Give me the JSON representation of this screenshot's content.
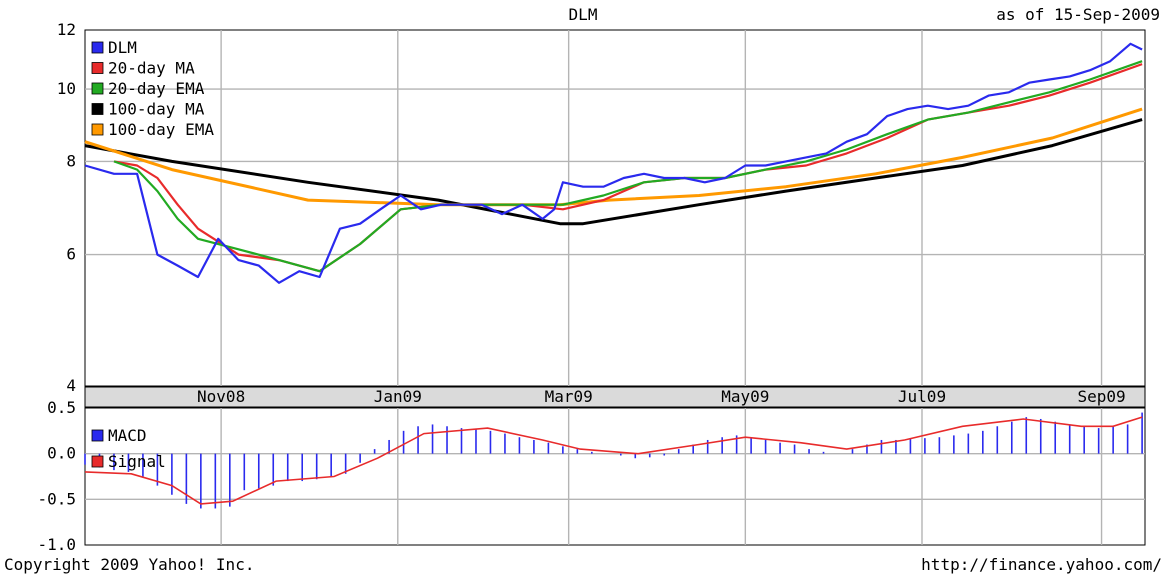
{
  "chart_data": [
    {
      "type": "line",
      "title": "DLM",
      "subtitle": "as of 15-Sep-2009",
      "y_scale": "log",
      "ylim": [
        4,
        12
      ],
      "yticks": [
        "4",
        "6",
        "8",
        "10",
        "12"
      ],
      "xticks": [
        "Nov08",
        "Jan09",
        "Mar09",
        "May09",
        "Jul09",
        "Sep09"
      ],
      "grid": true,
      "legend": "top-left",
      "series": [
        {
          "name": "DLM",
          "color": "#2a2aee",
          "x": [
            "2008-09-15",
            "2008-09-25",
            "2008-10-03",
            "2008-10-10",
            "2008-10-17",
            "2008-10-24",
            "2008-10-31",
            "2008-11-07",
            "2008-11-14",
            "2008-11-21",
            "2008-11-28",
            "2008-12-05",
            "2008-12-12",
            "2008-12-19",
            "2008-12-26",
            "2009-01-02",
            "2009-01-09",
            "2009-01-16",
            "2009-01-23",
            "2009-01-30",
            "2009-02-06",
            "2009-02-13",
            "2009-02-20",
            "2009-02-24",
            "2009-02-27",
            "2009-03-06",
            "2009-03-13",
            "2009-03-20",
            "2009-03-27",
            "2009-04-03",
            "2009-04-10",
            "2009-04-17",
            "2009-04-24",
            "2009-05-01",
            "2009-05-08",
            "2009-05-15",
            "2009-05-22",
            "2009-05-29",
            "2009-06-05",
            "2009-06-12",
            "2009-06-19",
            "2009-06-26",
            "2009-07-03",
            "2009-07-10",
            "2009-07-17",
            "2009-07-24",
            "2009-07-31",
            "2009-08-07",
            "2009-08-14",
            "2009-08-21",
            "2009-08-28",
            "2009-09-04",
            "2009-09-11",
            "2009-09-15"
          ],
          "values": [
            7.9,
            7.7,
            7.7,
            6.0,
            5.8,
            5.6,
            6.3,
            5.9,
            5.8,
            5.5,
            5.7,
            5.6,
            6.5,
            6.6,
            6.9,
            7.2,
            6.9,
            7.0,
            7.0,
            7.0,
            6.8,
            7.0,
            6.7,
            6.9,
            7.5,
            7.4,
            7.4,
            7.6,
            7.7,
            7.6,
            7.6,
            7.5,
            7.6,
            7.9,
            7.9,
            8.0,
            8.1,
            8.2,
            8.5,
            8.7,
            9.2,
            9.4,
            9.5,
            9.4,
            9.5,
            9.8,
            9.9,
            10.2,
            10.3,
            10.4,
            10.6,
            10.9,
            11.5,
            11.3
          ]
        },
        {
          "name": "20-day MA",
          "color": "#e82b2b",
          "x": [
            "2008-09-25",
            "2008-10-03",
            "2008-10-10",
            "2008-10-17",
            "2008-10-24",
            "2008-11-07",
            "2008-11-21",
            "2008-12-05",
            "2008-12-19",
            "2009-01-02",
            "2009-01-16",
            "2009-01-30",
            "2009-02-13",
            "2009-02-27",
            "2009-03-13",
            "2009-03-27",
            "2009-04-10",
            "2009-04-24",
            "2009-05-08",
            "2009-05-22",
            "2009-06-05",
            "2009-06-19",
            "2009-07-03",
            "2009-07-17",
            "2009-07-31",
            "2009-08-14",
            "2009-08-28",
            "2009-09-15"
          ],
          "values": [
            8.0,
            7.9,
            7.6,
            7.0,
            6.5,
            6.0,
            5.9,
            5.7,
            6.2,
            6.9,
            7.0,
            7.0,
            7.0,
            6.9,
            7.1,
            7.5,
            7.6,
            7.6,
            7.8,
            7.9,
            8.2,
            8.6,
            9.1,
            9.3,
            9.5,
            9.8,
            10.2,
            10.8
          ]
        },
        {
          "name": "20-day EMA",
          "color": "#22aa22",
          "x": [
            "2008-09-25",
            "2008-10-03",
            "2008-10-10",
            "2008-10-17",
            "2008-10-24",
            "2008-11-07",
            "2008-11-21",
            "2008-12-05",
            "2008-12-19",
            "2009-01-02",
            "2009-01-16",
            "2009-01-30",
            "2009-02-13",
            "2009-02-27",
            "2009-03-13",
            "2009-03-27",
            "2009-04-10",
            "2009-04-24",
            "2009-05-08",
            "2009-05-22",
            "2009-06-05",
            "2009-06-19",
            "2009-07-03",
            "2009-07-17",
            "2009-07-31",
            "2009-08-14",
            "2009-08-28",
            "2009-09-15"
          ],
          "values": [
            8.0,
            7.8,
            7.3,
            6.7,
            6.3,
            6.1,
            5.9,
            5.7,
            6.2,
            6.9,
            7.0,
            7.0,
            7.0,
            7.0,
            7.2,
            7.5,
            7.6,
            7.6,
            7.8,
            8.0,
            8.3,
            8.7,
            9.1,
            9.3,
            9.6,
            9.9,
            10.3,
            10.9
          ]
        },
        {
          "name": "100-day MA",
          "color": "#000000",
          "x": [
            "2008-09-15",
            "2008-10-15",
            "2008-12-01",
            "2009-01-15",
            "2009-02-26",
            "2009-03-06",
            "2009-04-15",
            "2009-05-15",
            "2009-06-15",
            "2009-07-15",
            "2009-08-15",
            "2009-09-15"
          ],
          "values": [
            8.4,
            8.0,
            7.5,
            7.1,
            6.6,
            6.6,
            7.0,
            7.3,
            7.6,
            7.9,
            8.4,
            9.1
          ]
        },
        {
          "name": "100-day EMA",
          "color": "#ff9900",
          "x": [
            "2008-09-15",
            "2008-10-15",
            "2008-12-01",
            "2009-01-15",
            "2009-02-26",
            "2009-03-15",
            "2009-04-15",
            "2009-05-15",
            "2009-06-15",
            "2009-07-15",
            "2009-08-15",
            "2009-09-15"
          ],
          "values": [
            8.5,
            7.8,
            7.1,
            7.0,
            7.0,
            7.1,
            7.2,
            7.4,
            7.7,
            8.1,
            8.6,
            9.4
          ]
        }
      ]
    },
    {
      "type": "bar",
      "ylim": [
        -1.0,
        0.5
      ],
      "yticks": [
        "0.5",
        "0.0",
        "-0.5",
        "-1.0"
      ],
      "grid": true,
      "legend": "top-left",
      "series": [
        {
          "name": "MACD",
          "color": "#2a2aee",
          "x": [
            "2008-09-15",
            "2008-09-20",
            "2008-09-25",
            "2008-09-30",
            "2008-10-05",
            "2008-10-10",
            "2008-10-15",
            "2008-10-20",
            "2008-10-25",
            "2008-10-30",
            "2008-11-04",
            "2008-11-09",
            "2008-11-14",
            "2008-11-19",
            "2008-11-24",
            "2008-11-29",
            "2008-12-04",
            "2008-12-09",
            "2008-12-14",
            "2008-12-19",
            "2008-12-24",
            "2008-12-29",
            "2009-01-03",
            "2009-01-08",
            "2009-01-13",
            "2009-01-18",
            "2009-01-23",
            "2009-01-28",
            "2009-02-02",
            "2009-02-07",
            "2009-02-12",
            "2009-02-17",
            "2009-02-22",
            "2009-02-27",
            "2009-03-04",
            "2009-03-09",
            "2009-03-14",
            "2009-03-19",
            "2009-03-24",
            "2009-03-29",
            "2009-04-03",
            "2009-04-08",
            "2009-04-13",
            "2009-04-18",
            "2009-04-23",
            "2009-04-28",
            "2009-05-03",
            "2009-05-08",
            "2009-05-13",
            "2009-05-18",
            "2009-05-23",
            "2009-05-28",
            "2009-06-02",
            "2009-06-07",
            "2009-06-12",
            "2009-06-17",
            "2009-06-22",
            "2009-06-27",
            "2009-07-02",
            "2009-07-07",
            "2009-07-12",
            "2009-07-17",
            "2009-07-22",
            "2009-07-27",
            "2009-08-01",
            "2009-08-06",
            "2009-08-11",
            "2009-08-16",
            "2009-08-21",
            "2009-08-26",
            "2009-08-31",
            "2009-09-05",
            "2009-09-10",
            "2009-09-15"
          ],
          "values": [
            -0.12,
            -0.15,
            -0.18,
            -0.2,
            -0.25,
            -0.35,
            -0.45,
            -0.55,
            -0.6,
            -0.6,
            -0.58,
            -0.4,
            -0.38,
            -0.35,
            -0.3,
            -0.3,
            -0.28,
            -0.25,
            -0.22,
            -0.1,
            0.05,
            0.15,
            0.25,
            0.3,
            0.32,
            0.3,
            0.28,
            0.27,
            0.25,
            0.22,
            0.18,
            0.15,
            0.12,
            0.08,
            0.05,
            0.02,
            0.0,
            -0.02,
            -0.05,
            -0.04,
            -0.02,
            0.05,
            0.1,
            0.15,
            0.18,
            0.2,
            0.18,
            0.15,
            0.12,
            0.1,
            0.05,
            0.02,
            0.0,
            0.05,
            0.1,
            0.15,
            0.15,
            0.17,
            0.17,
            0.18,
            0.2,
            0.22,
            0.25,
            0.3,
            0.35,
            0.4,
            0.38,
            0.35,
            0.32,
            0.3,
            0.28,
            0.3,
            0.32,
            0.45
          ]
        },
        {
          "name": "Signal",
          "color": "#e82b2b",
          "x": [
            "2008-09-15",
            "2008-10-01",
            "2008-10-15",
            "2008-10-25",
            "2008-11-05",
            "2008-11-20",
            "2008-12-10",
            "2008-12-25",
            "2009-01-10",
            "2009-02-01",
            "2009-02-20",
            "2009-03-05",
            "2009-03-25",
            "2009-04-15",
            "2009-05-01",
            "2009-05-20",
            "2009-06-05",
            "2009-06-25",
            "2009-07-15",
            "2009-08-05",
            "2009-08-25",
            "2009-09-05",
            "2009-09-15"
          ],
          "values": [
            -0.2,
            -0.22,
            -0.35,
            -0.55,
            -0.52,
            -0.3,
            -0.25,
            -0.05,
            0.22,
            0.28,
            0.15,
            0.05,
            0.0,
            0.1,
            0.18,
            0.12,
            0.05,
            0.15,
            0.3,
            0.38,
            0.3,
            0.3,
            0.4
          ]
        }
      ]
    }
  ],
  "footer": {
    "copyright": "Copyright 2009 Yahoo! Inc.",
    "url": "http://finance.yahoo.com/"
  }
}
